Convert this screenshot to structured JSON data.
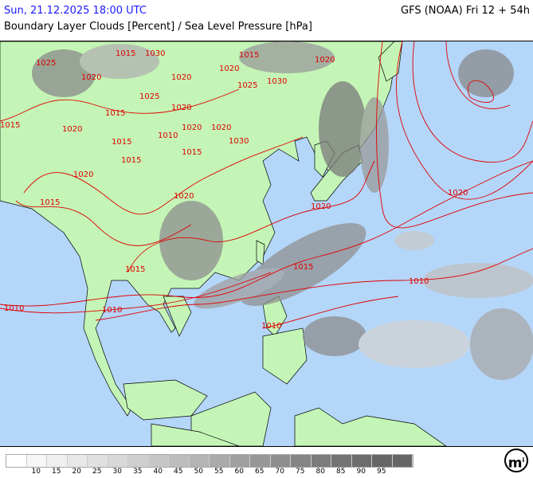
{
  "header": {
    "datetime": "Sun, 21.12.2025 18:00 UTC",
    "model": "GFS (NOAA) Fri 12 + 54h",
    "title": "Boundary Layer Clouds [Percent] / Sea Level Pressure [hPa]"
  },
  "colors": {
    "sea": "#b4d6f9",
    "land": "#c4f5b6",
    "isobar": "#e00000",
    "coast": "#000000"
  },
  "isobar_labels": [
    "1015",
    "1025",
    "1020",
    "1030",
    "1015",
    "1020",
    "1025",
    "1020",
    "1015",
    "1020",
    "1030",
    "1015",
    "1015",
    "1010",
    "1020",
    "1015",
    "1020",
    "1020",
    "1015",
    "1020",
    "1030",
    "1020",
    "1015",
    "1020",
    "1025",
    "1015",
    "1010",
    "1015",
    "1010",
    "1010",
    "1010",
    "1020",
    "1020"
  ],
  "legend": {
    "colors": [
      "#ffffff",
      "#f6f6f6",
      "#efefef",
      "#e8e8e8",
      "#e0e0e0",
      "#d8d8d8",
      "#cfcfcf",
      "#c6c6c6",
      "#bdbdbd",
      "#b4b4b4",
      "#aaaaaa",
      "#a0a0a0",
      "#979797",
      "#8e8e8e",
      "#858585",
      "#7c7c7c",
      "#737373",
      "#6c6c6c",
      "#666666",
      "#666666"
    ],
    "ticks": [
      "10",
      "15",
      "20",
      "25",
      "30",
      "35",
      "40",
      "45",
      "50",
      "55",
      "60",
      "65",
      "70",
      "75",
      "80",
      "85",
      "90",
      "95"
    ]
  },
  "logo": "m"
}
